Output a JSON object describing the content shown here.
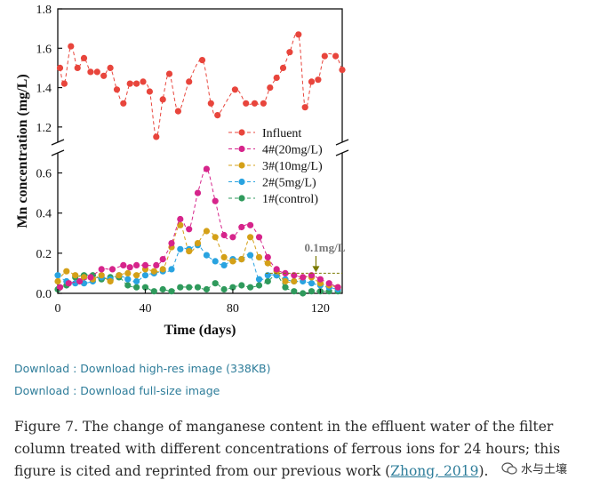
{
  "chart_data": {
    "type": "scatter",
    "subtype": "broken-axis dotted line",
    "xlabel": "Time (days)",
    "ylabel": "Mn concentration (mg/L)",
    "xlim": [
      0,
      130
    ],
    "xticks": [
      0,
      40,
      80,
      120
    ],
    "upper_ylim": [
      1.1,
      1.8
    ],
    "upper_yticks": [
      "1.2",
      "1.4",
      "1.6",
      "1.8"
    ],
    "lower_ylim": [
      0,
      0.7
    ],
    "lower_yticks": [
      "0.0",
      "0.2",
      "0.4",
      "0.6"
    ],
    "annotation": {
      "text": "0.1mg/L",
      "value": 0.1,
      "x": 118
    },
    "series": [
      {
        "name": "Influent",
        "color": "#e8453c",
        "axis": "upper",
        "x": [
          1,
          3,
          6,
          9,
          12,
          15,
          18,
          21,
          24,
          27,
          30,
          33,
          36,
          39,
          42,
          45,
          48,
          51,
          55,
          60,
          66,
          70,
          73,
          81,
          86,
          90,
          94,
          97,
          100,
          103,
          106,
          110,
          113,
          116,
          119,
          122,
          127,
          130
        ],
        "values": [
          1.5,
          1.42,
          1.61,
          1.5,
          1.55,
          1.48,
          1.48,
          1.46,
          1.5,
          1.39,
          1.32,
          1.42,
          1.42,
          1.43,
          1.38,
          1.15,
          1.34,
          1.47,
          1.28,
          1.43,
          1.54,
          1.32,
          1.26,
          1.39,
          1.32,
          1.32,
          1.32,
          1.4,
          1.45,
          1.5,
          1.58,
          1.67,
          1.3,
          1.43,
          1.44,
          1.56,
          1.56,
          1.49
        ]
      },
      {
        "name": "4#(20mg/L)",
        "color": "#d6248b",
        "axis": "lower",
        "x": [
          1,
          5,
          10,
          15,
          20,
          25,
          30,
          33,
          36,
          40,
          45,
          48,
          52,
          56,
          60,
          64,
          68,
          72,
          76,
          80,
          84,
          88,
          92,
          96,
          100,
          104,
          108,
          112,
          116,
          120,
          124,
          128
        ],
        "values": [
          0.03,
          0.05,
          0.06,
          0.08,
          0.12,
          0.12,
          0.14,
          0.13,
          0.14,
          0.14,
          0.14,
          0.17,
          0.25,
          0.37,
          0.32,
          0.5,
          0.62,
          0.46,
          0.29,
          0.28,
          0.33,
          0.34,
          0.28,
          0.18,
          0.12,
          0.1,
          0.09,
          0.08,
          0.09,
          0.07,
          0.05,
          0.03
        ]
      },
      {
        "name": "3#(10mg/L)",
        "color": "#d4a017",
        "axis": "lower",
        "x": [
          0,
          4,
          8,
          12,
          16,
          20,
          24,
          28,
          32,
          36,
          40,
          44,
          48,
          52,
          56,
          60,
          64,
          68,
          72,
          76,
          80,
          84,
          88,
          92,
          96,
          100,
          104,
          108,
          112,
          116,
          120,
          124,
          128
        ],
        "values": [
          0.06,
          0.11,
          0.09,
          0.08,
          0.07,
          0.09,
          0.06,
          0.09,
          0.1,
          0.09,
          0.12,
          0.11,
          0.12,
          0.23,
          0.34,
          0.21,
          0.25,
          0.31,
          0.28,
          0.18,
          0.16,
          0.17,
          0.28,
          0.18,
          0.15,
          0.11,
          0.06,
          0.06,
          0.08,
          0.08,
          0.05,
          0.04,
          0.03
        ]
      },
      {
        "name": "2#(5mg/L)",
        "color": "#29a3e0",
        "axis": "lower",
        "x": [
          0,
          4,
          8,
          12,
          16,
          20,
          24,
          28,
          32,
          36,
          40,
          44,
          48,
          52,
          56,
          60,
          64,
          68,
          72,
          76,
          80,
          84,
          88,
          92,
          96,
          100,
          104,
          108,
          112,
          116,
          120,
          124,
          128
        ],
        "values": [
          0.09,
          0.06,
          0.05,
          0.05,
          0.06,
          0.08,
          0.07,
          0.09,
          0.07,
          0.06,
          0.09,
          0.1,
          0.11,
          0.12,
          0.22,
          0.22,
          0.24,
          0.19,
          0.16,
          0.14,
          0.17,
          0.17,
          0.19,
          0.07,
          0.09,
          0.09,
          0.07,
          0.06,
          0.06,
          0.05,
          0.04,
          0.03,
          0.02
        ]
      },
      {
        "name": "1#(control)",
        "color": "#2f9a5c",
        "axis": "lower",
        "x": [
          0,
          4,
          8,
          12,
          16,
          20,
          24,
          28,
          32,
          36,
          40,
          44,
          48,
          52,
          56,
          60,
          64,
          68,
          72,
          76,
          80,
          84,
          88,
          92,
          96,
          100,
          104,
          108,
          112,
          116,
          120,
          124,
          128
        ],
        "values": [
          0.02,
          0.04,
          0.08,
          0.09,
          0.09,
          0.07,
          0.08,
          0.08,
          0.04,
          0.03,
          0.03,
          0.01,
          0.02,
          0.01,
          0.03,
          0.03,
          0.03,
          0.02,
          0.05,
          0.02,
          0.03,
          0.04,
          0.03,
          0.04,
          0.06,
          0.09,
          0.03,
          0.01,
          0.0,
          0.01,
          0.01,
          0.01,
          0.01
        ]
      }
    ]
  },
  "links": {
    "highres": "Download : Download high-res image (338KB)",
    "fullsize": "Download : Download full-size image"
  },
  "caption": {
    "text": "Figure 7. The change of manganese content in the effluent water of the filter column treated with different concentrations of ferrous ions for 24 hours; this figure is cited and reprinted from our previous work (",
    "cite": "Zhong, 2019",
    "end": ")."
  },
  "watermark": {
    "text": "水与土壤"
  }
}
